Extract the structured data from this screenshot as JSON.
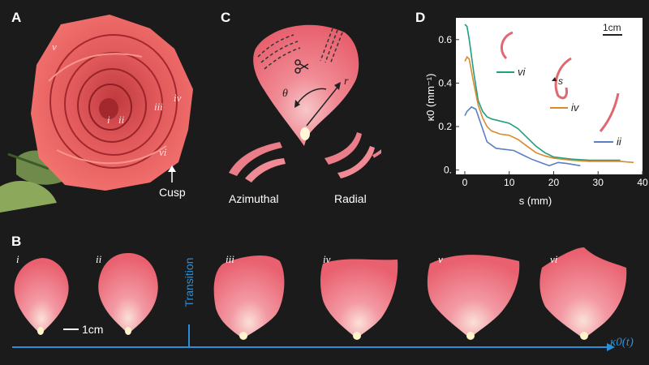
{
  "panels": {
    "a": "A",
    "b": "B",
    "c": "C",
    "d": "D"
  },
  "panel_a": {
    "roman_labels": [
      "v",
      "iii",
      "iv",
      "i",
      "ii",
      "vi"
    ],
    "cusp_label": "Cusp"
  },
  "panel_c": {
    "theta": "θ",
    "r": "r",
    "azimuthal": "Azimuthal",
    "radial": "Radial"
  },
  "panel_b": {
    "petal_labels": [
      "i",
      "ii",
      "iii",
      "iv",
      "v",
      "vi"
    ],
    "scale_label": "1cm",
    "transition_label": "Transition",
    "axis_label": "κ0(t)",
    "colors": {
      "axis": "#2a8fd8"
    }
  },
  "panel_d": {
    "scale_label": "1cm",
    "inset_s_label": "s",
    "legend": [
      "vi",
      "iv",
      "ii"
    ]
  },
  "chart_data": {
    "type": "line",
    "xlabel": "s (mm)",
    "ylabel": "κ0 (mm⁻¹)",
    "xlim": [
      -2,
      40
    ],
    "ylim": [
      -0.02,
      0.7
    ],
    "xticks": [
      0,
      10,
      20,
      30,
      40
    ],
    "yticks": [
      0.0,
      0.2,
      0.4,
      0.6
    ],
    "ytick_labels": [
      "0.",
      "0.2",
      "0.4",
      "0.6"
    ],
    "grid": false,
    "series": [
      {
        "name": "vi",
        "color": "#1f9e80",
        "x": [
          0,
          0.5,
          1,
          2,
          3,
          4,
          5,
          6,
          8,
          10,
          12,
          14,
          16,
          18,
          20,
          24,
          28,
          32,
          35
        ],
        "y": [
          0.67,
          0.66,
          0.6,
          0.45,
          0.32,
          0.27,
          0.245,
          0.235,
          0.225,
          0.215,
          0.19,
          0.15,
          0.11,
          0.08,
          0.06,
          0.05,
          0.045,
          0.045,
          0.045
        ]
      },
      {
        "name": "iv",
        "color": "#d98a2b",
        "x": [
          0,
          0.5,
          1,
          2,
          3,
          4,
          5,
          6,
          8,
          10,
          12,
          14,
          16,
          18,
          20,
          24,
          28,
          32,
          35,
          38
        ],
        "y": [
          0.5,
          0.52,
          0.51,
          0.4,
          0.3,
          0.24,
          0.2,
          0.18,
          0.165,
          0.16,
          0.14,
          0.11,
          0.08,
          0.065,
          0.055,
          0.045,
          0.04,
          0.04,
          0.04,
          0.035
        ]
      },
      {
        "name": "ii",
        "color": "#5b7fc7",
        "x": [
          0,
          0.5,
          1.5,
          2.5,
          3.5,
          5,
          7,
          9,
          11,
          13,
          15,
          17,
          19,
          21,
          23,
          24.5,
          26
        ],
        "y": [
          0.25,
          0.27,
          0.29,
          0.28,
          0.22,
          0.13,
          0.1,
          0.095,
          0.09,
          0.07,
          0.05,
          0.035,
          0.02,
          0.035,
          0.03,
          0.025,
          0.02
        ]
      }
    ]
  }
}
